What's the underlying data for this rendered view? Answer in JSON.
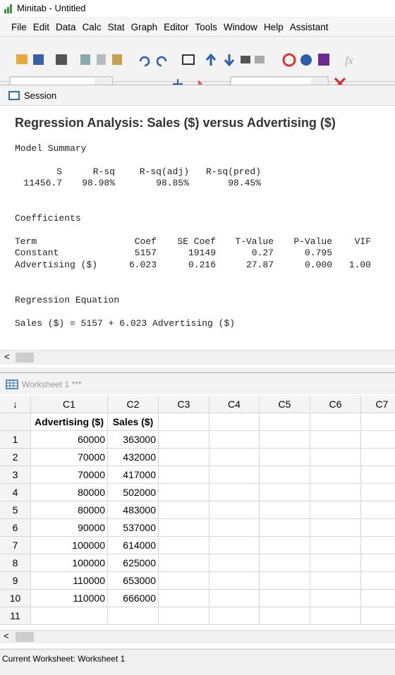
{
  "window": {
    "title": "Minitab - Untitled"
  },
  "menu": [
    "File",
    "Edit",
    "Data",
    "Calc",
    "Stat",
    "Graph",
    "Editor",
    "Tools",
    "Window",
    "Help",
    "Assistant"
  ],
  "session": {
    "label": "Session",
    "heading": "Regression Analysis: Sales ($) versus Advertising ($)",
    "model_summary": {
      "title": "Model Summary",
      "header": [
        "S",
        "R-sq",
        "R-sq(adj)",
        "R-sq(pred)"
      ],
      "row": [
        "11456.7",
        "98.98%",
        "98.85%",
        "98.45%"
      ]
    },
    "coefficients": {
      "title": "Coefficients",
      "header": [
        "Term",
        "Coef",
        "SE Coef",
        "T-Value",
        "P-Value",
        "VIF"
      ],
      "rows": [
        [
          "Constant",
          "5157",
          "19149",
          "0.27",
          "0.795"
        ],
        [
          "Advertising ($)",
          "6.023",
          "0.216",
          "27.87",
          "0.000",
          "1.00"
        ]
      ]
    },
    "equation": {
      "title": "Regression Equation",
      "text": "Sales ($) = 5157 + 6.023 Advertising ($)"
    }
  },
  "worksheet": {
    "title": "Worksheet 1 ***",
    "columns": [
      "C1",
      "C2",
      "C3",
      "C4",
      "C5",
      "C6",
      "C7"
    ],
    "names": [
      "Advertising ($)",
      "Sales ($)"
    ],
    "row_numbers": [
      1,
      2,
      3,
      4,
      5,
      6,
      7,
      8,
      9,
      10,
      11
    ],
    "rows": [
      [
        60000,
        363000
      ],
      [
        70000,
        432000
      ],
      [
        70000,
        417000
      ],
      [
        80000,
        502000
      ],
      [
        80000,
        483000
      ],
      [
        90000,
        537000
      ],
      [
        100000,
        614000
      ],
      [
        100000,
        625000
      ],
      [
        110000,
        653000
      ],
      [
        110000,
        666000
      ]
    ]
  },
  "status": "Current Worksheet: Worksheet 1"
}
